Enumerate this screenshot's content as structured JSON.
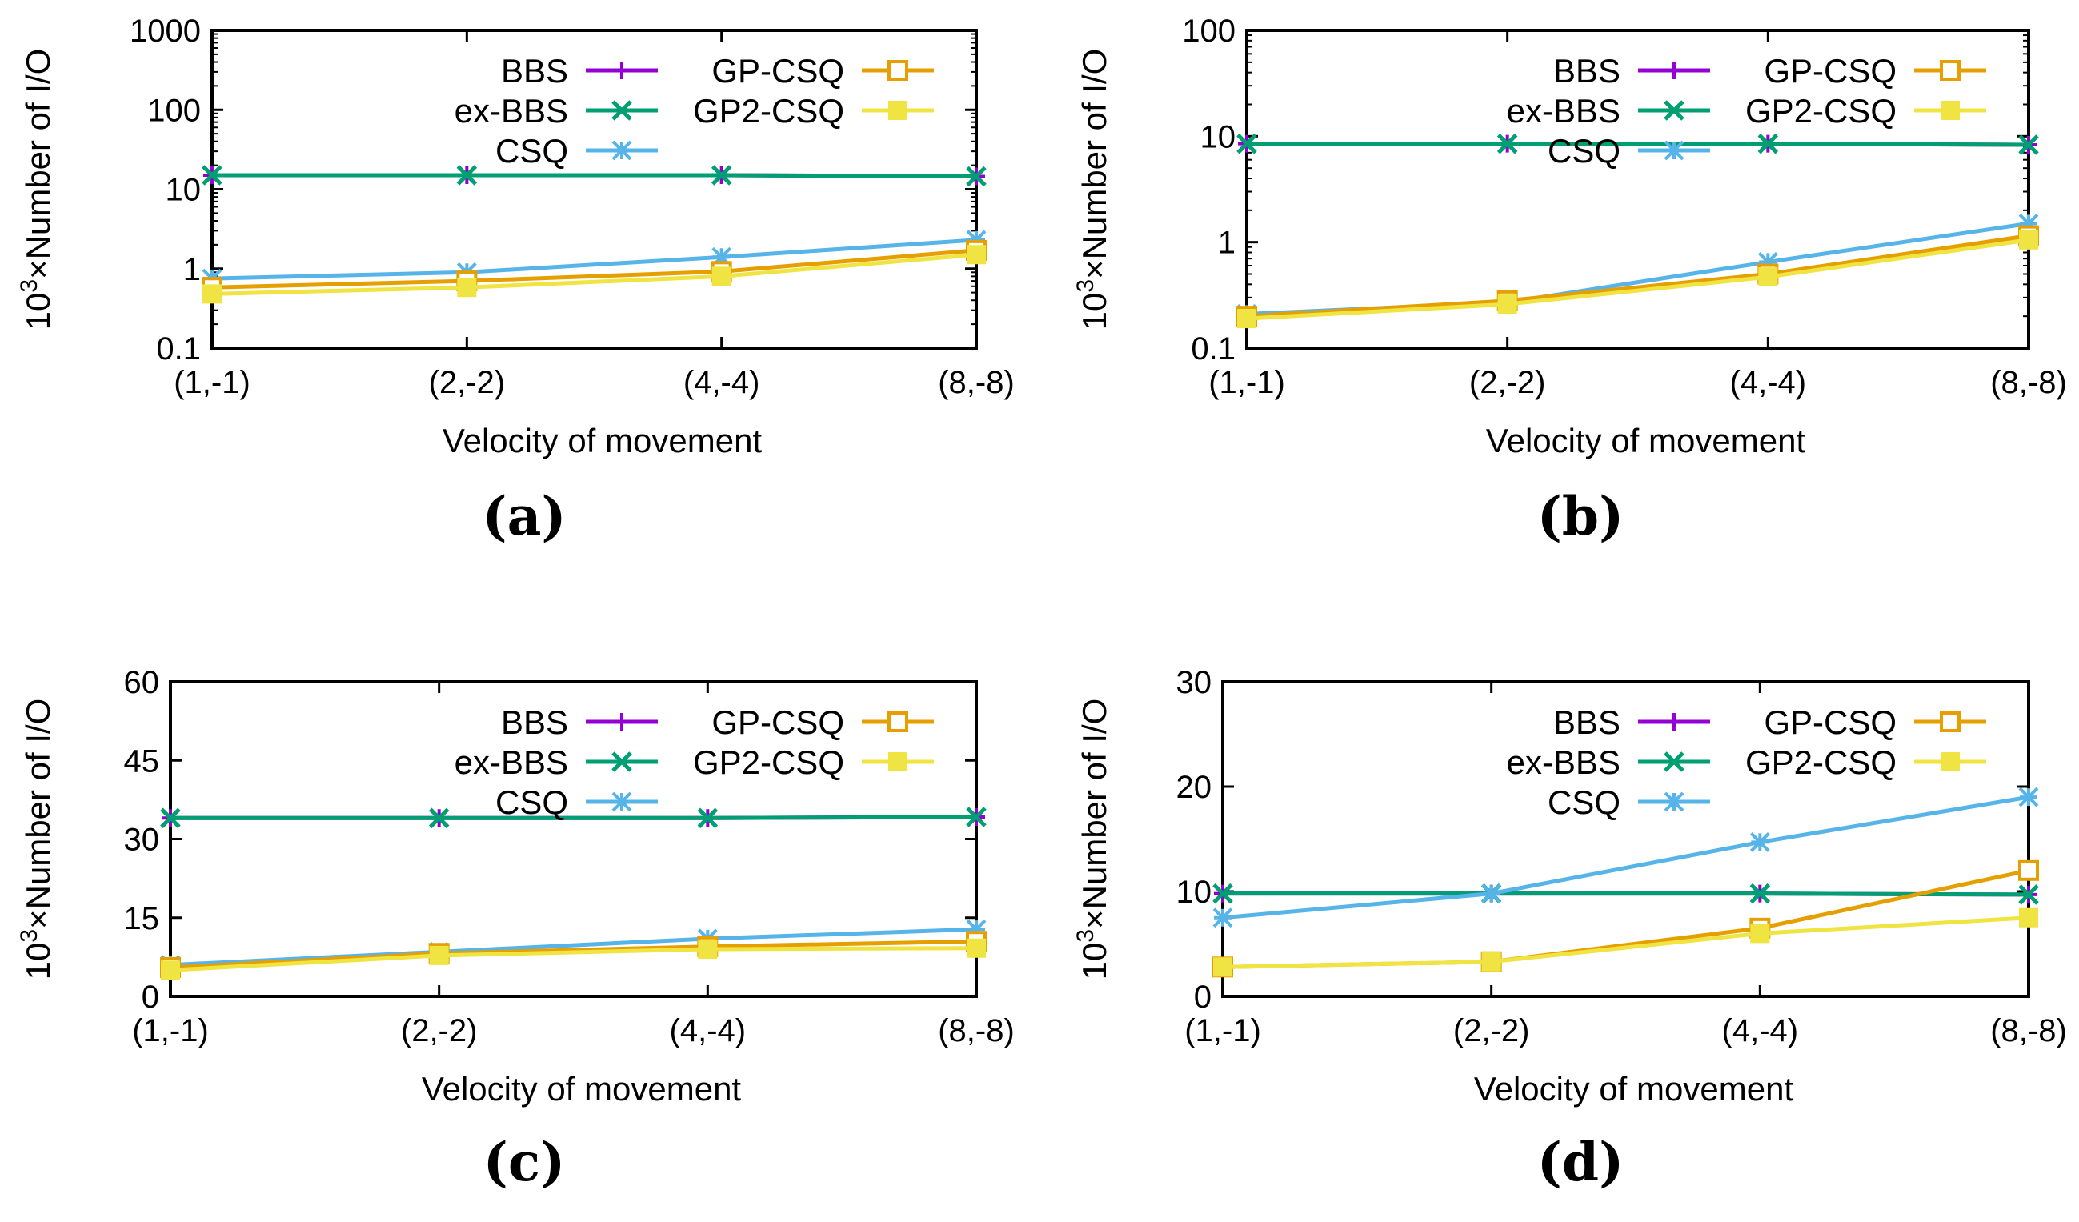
{
  "figure": {
    "series_styles": [
      {
        "name": "BBS",
        "color": "#9400d3",
        "marker": "plus"
      },
      {
        "name": "ex-BBS",
        "color": "#009e73",
        "marker": "x"
      },
      {
        "name": "CSQ",
        "color": "#56b4e9",
        "marker": "star"
      },
      {
        "name": "GP-CSQ",
        "color": "#e69f00",
        "marker": "square"
      },
      {
        "name": "GP2-CSQ",
        "color": "#f0e442",
        "marker": "filled-square"
      }
    ]
  },
  "chart_data": [
    {
      "type": "line",
      "caption": "(a)",
      "xlabel": "Velocity of movement",
      "ylabel_prefix": "10",
      "ylabel_sup": "3",
      "ylabel_rest": "×Number of I/O",
      "yscale": "log",
      "ylim": [
        0.1,
        1000
      ],
      "yticks": [
        0.1,
        1,
        10,
        100,
        1000
      ],
      "ytick_labels": [
        "0.1",
        "1",
        "10",
        "100",
        "1000"
      ],
      "categories": [
        "(1,-1)",
        "(2,-2)",
        "(4,-4)",
        "(8,-8)"
      ],
      "legend_position": "top-right",
      "series": [
        {
          "name": "BBS",
          "values": [
            15,
            15,
            15,
            14.5
          ]
        },
        {
          "name": "ex-BBS",
          "values": [
            15,
            15,
            15,
            14.5
          ]
        },
        {
          "name": "CSQ",
          "values": [
            0.75,
            0.9,
            1.4,
            2.3
          ]
        },
        {
          "name": "GP-CSQ",
          "values": [
            0.58,
            0.7,
            0.92,
            1.7
          ]
        },
        {
          "name": "GP2-CSQ",
          "values": [
            0.48,
            0.58,
            0.8,
            1.5
          ]
        }
      ]
    },
    {
      "type": "line",
      "caption": "(b)",
      "xlabel": "Velocity of movement",
      "ylabel_prefix": "10",
      "ylabel_sup": "3",
      "ylabel_rest": "×Number of I/O",
      "yscale": "log",
      "ylim": [
        0.1,
        100
      ],
      "yticks": [
        0.1,
        1,
        10,
        100
      ],
      "ytick_labels": [
        "0.1",
        "1",
        "10",
        "100"
      ],
      "categories": [
        "(1,-1)",
        "(2,-2)",
        "(4,-4)",
        "(8,-8)"
      ],
      "legend_position": "top-right",
      "series": [
        {
          "name": "BBS",
          "values": [
            8.5,
            8.5,
            8.5,
            8.3
          ]
        },
        {
          "name": "ex-BBS",
          "values": [
            8.5,
            8.5,
            8.5,
            8.3
          ]
        },
        {
          "name": "CSQ",
          "values": [
            0.21,
            0.27,
            0.65,
            1.5
          ]
        },
        {
          "name": "GP-CSQ",
          "values": [
            0.2,
            0.28,
            0.5,
            1.15
          ]
        },
        {
          "name": "GP2-CSQ",
          "values": [
            0.19,
            0.26,
            0.47,
            1.05
          ]
        }
      ]
    },
    {
      "type": "line",
      "caption": "(c)",
      "xlabel": "Velocity of movement",
      "ylabel_prefix": "10",
      "ylabel_sup": "3",
      "ylabel_rest": "×Number of I/O",
      "yscale": "linear",
      "ylim": [
        0,
        60
      ],
      "yticks": [
        0,
        15,
        30,
        45,
        60
      ],
      "ytick_labels": [
        "0",
        "15",
        "30",
        "45",
        "60"
      ],
      "categories": [
        "(1,-1)",
        "(2,-2)",
        "(4,-4)",
        "(8,-8)"
      ],
      "legend_position": "top-right",
      "series": [
        {
          "name": "BBS",
          "values": [
            34,
            34,
            34,
            34.2
          ]
        },
        {
          "name": "ex-BBS",
          "values": [
            34,
            34,
            34,
            34.2
          ]
        },
        {
          "name": "CSQ",
          "values": [
            6,
            8.5,
            11,
            12.8
          ]
        },
        {
          "name": "GP-CSQ",
          "values": [
            5.5,
            8.2,
            9.5,
            10.5
          ]
        },
        {
          "name": "GP2-CSQ",
          "values": [
            5.0,
            7.8,
            9.0,
            9.2
          ]
        }
      ]
    },
    {
      "type": "line",
      "caption": "(d)",
      "xlabel": "Velocity of movement",
      "ylabel_prefix": "10",
      "ylabel_sup": "3",
      "ylabel_rest": "×Number of I/O",
      "yscale": "linear",
      "ylim": [
        0,
        30
      ],
      "yticks": [
        0,
        10,
        20,
        30
      ],
      "ytick_labels": [
        "0",
        "10",
        "20",
        "30"
      ],
      "categories": [
        "(1,-1)",
        "(2,-2)",
        "(4,-4)",
        "(8,-8)"
      ],
      "legend_position": "top-right",
      "series": [
        {
          "name": "BBS",
          "values": [
            9.8,
            9.8,
            9.8,
            9.7
          ]
        },
        {
          "name": "ex-BBS",
          "values": [
            9.8,
            9.8,
            9.8,
            9.7
          ]
        },
        {
          "name": "CSQ",
          "values": [
            7.5,
            9.8,
            14.7,
            19
          ]
        },
        {
          "name": "GP-CSQ",
          "values": [
            2.8,
            3.3,
            6.5,
            12
          ]
        },
        {
          "name": "GP2-CSQ",
          "values": [
            2.8,
            3.3,
            6.0,
            7.5
          ]
        }
      ]
    }
  ]
}
